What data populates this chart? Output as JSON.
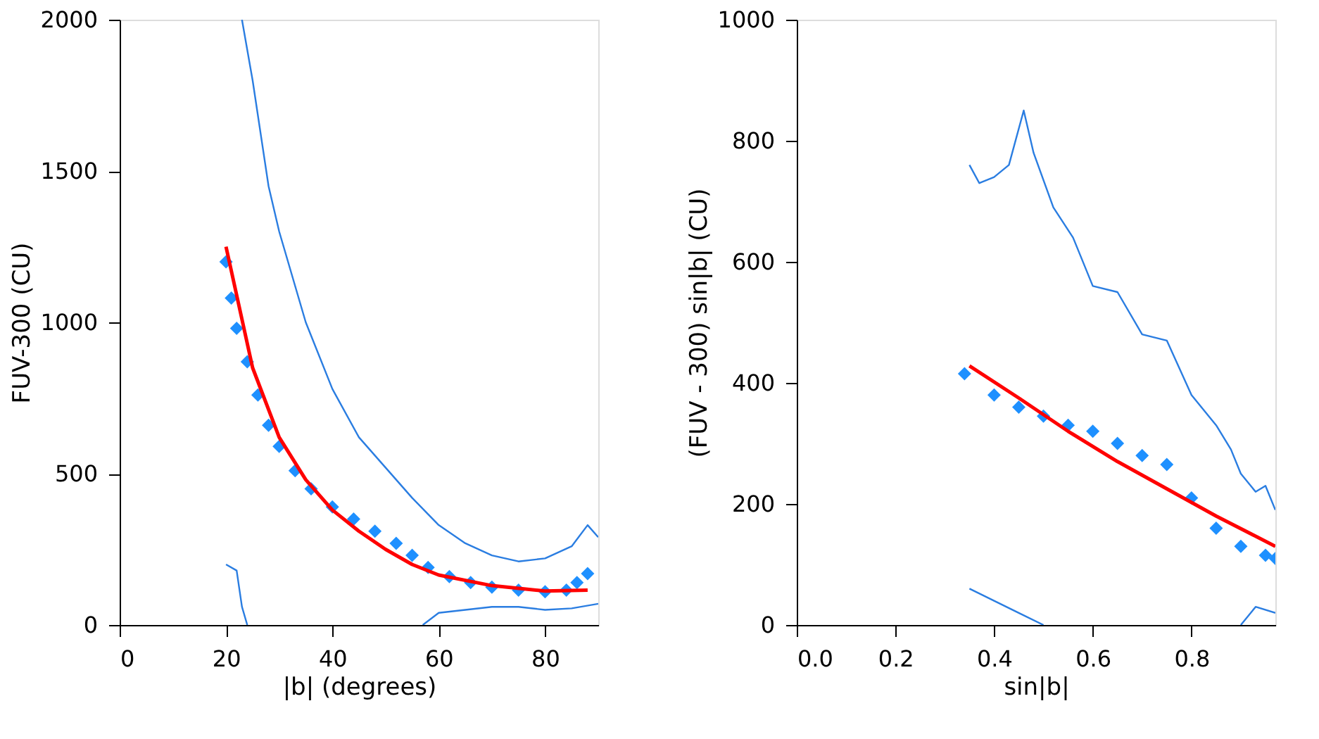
{
  "chart_data": [
    {
      "type": "line",
      "xlabel": "|b| (degrees)",
      "ylabel": "FUV-300 (CU)",
      "xlim": [
        0,
        90
      ],
      "xticks": [
        0,
        20,
        40,
        60,
        80
      ],
      "ylim": [
        0,
        2000
      ],
      "yticks": [
        0,
        500,
        1000,
        1500,
        2000
      ],
      "grid": false,
      "line_style": "solid",
      "series": [
        {
          "color": "#2a7de1",
          "x": [
            23,
            25,
            28,
            30,
            35,
            40,
            45,
            50,
            55,
            60,
            65,
            70,
            75,
            80,
            85,
            88,
            90
          ],
          "values": [
            2000,
            1800,
            1450,
            1300,
            1000,
            780,
            620,
            520,
            420,
            330,
            270,
            230,
            210,
            220,
            260,
            330,
            290
          ]
        },
        {
          "color": "#2a7de1",
          "x": [
            20,
            22,
            23,
            24,
            40,
            57,
            60,
            65,
            70,
            75,
            80,
            85,
            90
          ],
          "values": [
            200,
            180,
            60,
            0,
            null,
            0,
            40,
            50,
            60,
            60,
            50,
            55,
            70
          ]
        },
        {
          "type": "scatter",
          "marker": "diamond",
          "color": "#1e90ff",
          "x": [
            20,
            21,
            22,
            24,
            26,
            28,
            30,
            33,
            36,
            40,
            44,
            48,
            52,
            55,
            58,
            62,
            66,
            70,
            75,
            80,
            84,
            86,
            88
          ],
          "values": [
            1200,
            1080,
            980,
            870,
            760,
            660,
            590,
            510,
            450,
            390,
            350,
            310,
            270,
            230,
            190,
            160,
            140,
            125,
            115,
            110,
            115,
            140,
            170
          ]
        },
        {
          "color": "#ff0000",
          "x": [
            20,
            25,
            30,
            35,
            40,
            45,
            50,
            55,
            60,
            70,
            80,
            88
          ],
          "values": [
            1250,
            850,
            620,
            480,
            380,
            310,
            250,
            200,
            165,
            130,
            112,
            115
          ]
        }
      ]
    },
    {
      "type": "line",
      "xlabel": "sin|b|",
      "ylabel": "(FUV - 300) sin|b| (CU)",
      "xlim": [
        0,
        0.97
      ],
      "xticks": [
        {
          "value": 0,
          "label": "0.0"
        },
        {
          "value": 0.2,
          "label": "0.2"
        },
        {
          "value": 0.4,
          "label": "0.4"
        },
        {
          "value": 0.6,
          "label": "0.6"
        },
        {
          "value": 0.8,
          "label": "0.8"
        }
      ],
      "ylim": [
        0,
        1000
      ],
      "yticks": [
        0,
        200,
        400,
        600,
        800,
        1000
      ],
      "grid": false,
      "line_style": "solid",
      "series": [
        {
          "color": "#2a7de1",
          "x": [
            0.35,
            0.37,
            0.4,
            0.43,
            0.46,
            0.48,
            0.52,
            0.56,
            0.6,
            0.65,
            0.7,
            0.75,
            0.8,
            0.85,
            0.88,
            0.9,
            0.93,
            0.95,
            0.97
          ],
          "values": [
            760,
            730,
            740,
            760,
            850,
            780,
            690,
            640,
            560,
            550,
            480,
            470,
            380,
            330,
            290,
            250,
            220,
            230,
            190
          ]
        },
        {
          "color": "#2a7de1",
          "x": [
            0.35,
            0.4,
            0.45,
            0.5,
            0.7,
            0.9,
            0.93,
            0.97
          ],
          "values": [
            60,
            40,
            20,
            0,
            null,
            0,
            30,
            20
          ]
        },
        {
          "type": "scatter",
          "marker": "diamond",
          "color": "#1e90ff",
          "x": [
            0.34,
            0.4,
            0.45,
            0.5,
            0.55,
            0.6,
            0.65,
            0.7,
            0.75,
            0.8,
            0.85,
            0.9,
            0.95,
            0.97
          ],
          "values": [
            415,
            380,
            360,
            345,
            330,
            320,
            300,
            280,
            265,
            210,
            160,
            130,
            115,
            110
          ]
        },
        {
          "color": "#ff0000",
          "x": [
            0.35,
            0.45,
            0.55,
            0.65,
            0.75,
            0.85,
            0.97
          ],
          "values": [
            428,
            375,
            320,
            270,
            225,
            180,
            130
          ]
        }
      ]
    }
  ]
}
